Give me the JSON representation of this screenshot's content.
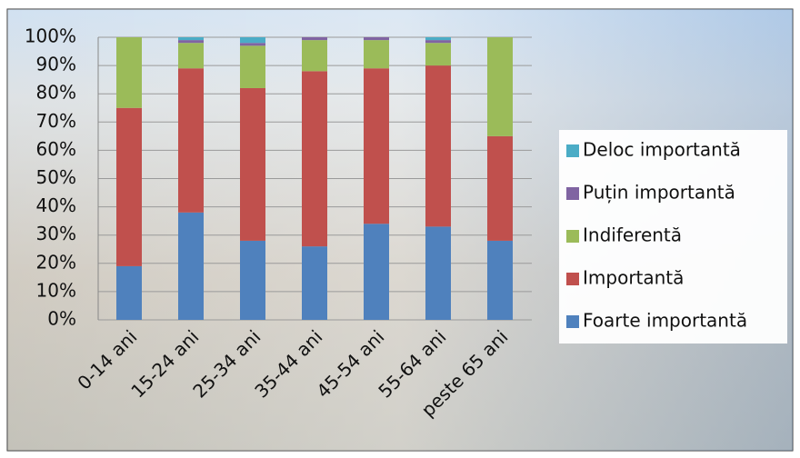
{
  "chart_data": {
    "type": "stacked_bar",
    "categories": [
      "0-14 ani",
      "15-24 ani",
      "25-34 ani",
      "35-44 ani",
      "45-54 ani",
      "55-64 ani",
      "peste 65 ani"
    ],
    "series": [
      {
        "name": "Foarte importantă",
        "color": "#4f81bd",
        "values": [
          19,
          38,
          28,
          26,
          34,
          33,
          28
        ]
      },
      {
        "name": "Importantă",
        "color": "#c0504d",
        "values": [
          56,
          51,
          54,
          62,
          55,
          57,
          37
        ]
      },
      {
        "name": "Indiferentă",
        "color": "#9bbb59",
        "values": [
          25,
          9,
          15,
          11,
          10,
          8,
          35
        ]
      },
      {
        "name": "Puțin importantă",
        "color": "#8064a2",
        "values": [
          0,
          1,
          1,
          1,
          1,
          1,
          0
        ]
      },
      {
        "name": "Deloc importantă",
        "color": "#4bacc6",
        "values": [
          0,
          1,
          2,
          0,
          0,
          1,
          0
        ]
      }
    ],
    "ylim": [
      0,
      100
    ],
    "yticks": [
      {
        "value": 0,
        "label": "0%"
      },
      {
        "value": 10,
        "label": "10%"
      },
      {
        "value": 20,
        "label": "20%"
      },
      {
        "value": 30,
        "label": "30%"
      },
      {
        "value": 40,
        "label": "40%"
      },
      {
        "value": 50,
        "label": "50%"
      },
      {
        "value": 60,
        "label": "60%"
      },
      {
        "value": 70,
        "label": "70%"
      },
      {
        "value": 80,
        "label": "80%"
      },
      {
        "value": 90,
        "label": "90%"
      },
      {
        "value": 100,
        "label": "100%"
      }
    ],
    "grid": true,
    "legend": "right"
  }
}
